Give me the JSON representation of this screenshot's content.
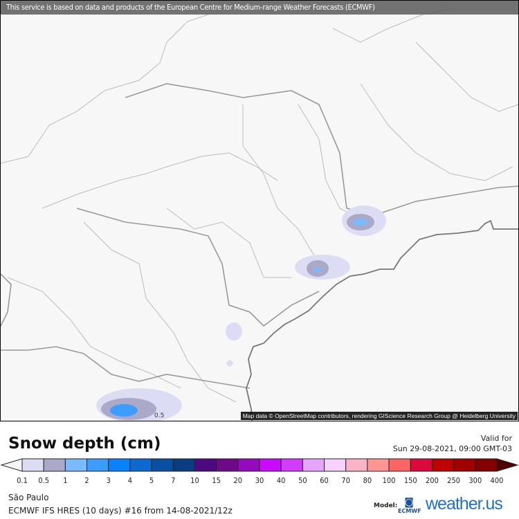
{
  "map": {
    "banner": "This service is based on data and products of the European Centre for Medium-range Weather Forecasts (ECMWF)",
    "attribution": "Map data © OpenStreetMap contributors, rendering GIScience Research Group @ Heidelberg University",
    "contour_label": "0.5"
  },
  "legend": {
    "title": "Snow depth (cm)",
    "valid_label": "Valid for",
    "valid_time": "Sun 29-08-2021, 09:00 GMT-03",
    "ticks": [
      "0.1",
      "0.5",
      "1",
      "2",
      "3",
      "4",
      "5",
      "7",
      "10",
      "15",
      "20",
      "30",
      "40",
      "50",
      "60",
      "70",
      "80",
      "100",
      "150",
      "200",
      "250",
      "300",
      "400"
    ],
    "colors": [
      "#dcdcf5",
      "#aaaac8",
      "#7abaff",
      "#3c9cff",
      "#0a82ff",
      "#0a6ad2",
      "#0a50a0",
      "#0a3c82",
      "#4b0a82",
      "#6e0a87",
      "#960abe",
      "#c80aff",
      "#d23cff",
      "#e6a5ff",
      "#f5d2ff",
      "#fab4c8",
      "#ff9696",
      "#ff6464",
      "#dc0a3c",
      "#be0000",
      "#a00000",
      "#820000"
    ],
    "low_arrow_color": "#f5f5f5",
    "high_arrow_color": "#500000"
  },
  "footer": {
    "location": "São Paulo",
    "run": "ECMWF IFS HRES (10 days) #16 from  14-08-2021/12z",
    "model_label": "Model:",
    "ecmwf_logo": "ECMWF",
    "brand_logo": "weather.us"
  }
}
